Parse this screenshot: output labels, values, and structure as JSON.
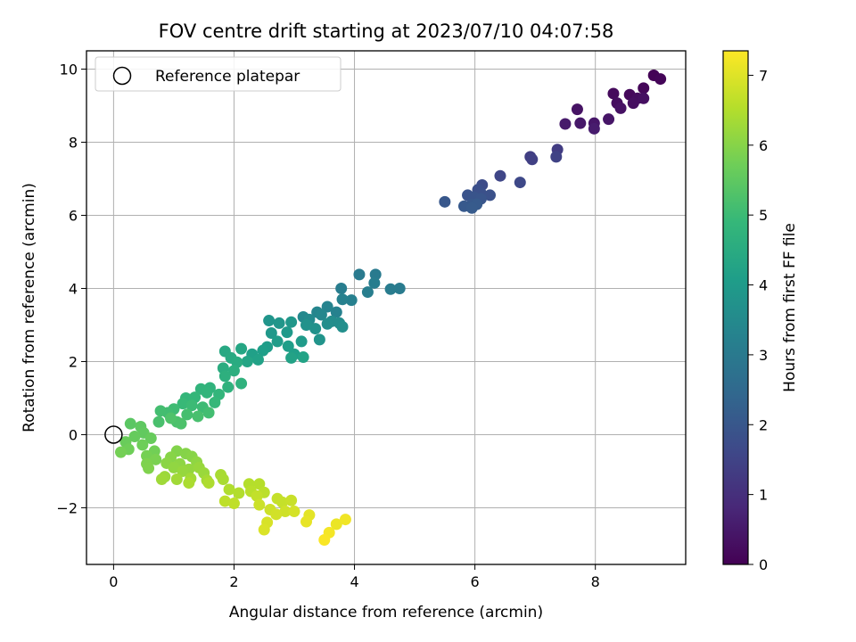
{
  "chart_data": {
    "type": "scatter",
    "title": "FOV centre drift starting at 2023/07/10 04:07:58",
    "xlabel": "Angular distance from reference (arcmin)",
    "ylabel": "Rotation from reference (arcmin)",
    "xlim": [
      -0.45,
      9.5
    ],
    "ylim": [
      -3.55,
      10.5
    ],
    "xticks": [
      0,
      2,
      4,
      6,
      8
    ],
    "xtick_labels": [
      "0",
      "2",
      "4",
      "6",
      "8"
    ],
    "yticks": [
      -2,
      0,
      2,
      4,
      6,
      8,
      10
    ],
    "ytick_labels": [
      "−2",
      "0",
      "2",
      "4",
      "6",
      "8",
      "10"
    ],
    "grid": true,
    "legend": {
      "placement": "top-left",
      "entries": [
        {
          "label": "Reference platepar",
          "marker": "open-circle"
        }
      ]
    },
    "reference_point": {
      "x": 0,
      "y": 0
    },
    "colorbar": {
      "label": "Hours from first FF file",
      "colormap": "viridis",
      "range": [
        0,
        7.35
      ],
      "ticks": [
        0,
        1,
        2,
        3,
        4,
        5,
        6,
        7
      ],
      "tick_labels": [
        "0",
        "1",
        "2",
        "3",
        "4",
        "5",
        "6",
        "7"
      ]
    },
    "colormap_stops": [
      "#440154",
      "#482878",
      "#3e4989",
      "#31688e",
      "#26828e",
      "#1f9e89",
      "#35b779",
      "#6ece58",
      "#b5de2b",
      "#fde725"
    ],
    "points": [
      {
        "x": 8.97,
        "y": 9.83,
        "t": 0.05
      },
      {
        "x": 9.08,
        "y": 9.73,
        "t": 0.08
      },
      {
        "x": 8.8,
        "y": 9.48,
        "t": 0.12
      },
      {
        "x": 8.57,
        "y": 9.3,
        "t": 0.15
      },
      {
        "x": 8.3,
        "y": 9.33,
        "t": 0.18
      },
      {
        "x": 8.7,
        "y": 9.2,
        "t": 0.22
      },
      {
        "x": 8.36,
        "y": 9.07,
        "t": 0.25
      },
      {
        "x": 8.63,
        "y": 9.07,
        "t": 0.28
      },
      {
        "x": 8.8,
        "y": 9.2,
        "t": 0.3
      },
      {
        "x": 8.42,
        "y": 8.93,
        "t": 0.33
      },
      {
        "x": 7.7,
        "y": 8.9,
        "t": 0.37
      },
      {
        "x": 8.22,
        "y": 8.63,
        "t": 0.42
      },
      {
        "x": 7.98,
        "y": 8.52,
        "t": 0.45
      },
      {
        "x": 7.75,
        "y": 8.52,
        "t": 0.48
      },
      {
        "x": 7.5,
        "y": 8.5,
        "t": 0.52
      },
      {
        "x": 7.98,
        "y": 8.37,
        "t": 0.56
      },
      {
        "x": 7.37,
        "y": 7.8,
        "t": 1.3
      },
      {
        "x": 6.92,
        "y": 7.6,
        "t": 1.35
      },
      {
        "x": 6.95,
        "y": 7.53,
        "t": 1.4
      },
      {
        "x": 7.35,
        "y": 7.6,
        "t": 1.45
      },
      {
        "x": 6.42,
        "y": 7.08,
        "t": 1.55
      },
      {
        "x": 6.75,
        "y": 6.9,
        "t": 1.6
      },
      {
        "x": 6.12,
        "y": 6.83,
        "t": 1.7
      },
      {
        "x": 6.05,
        "y": 6.7,
        "t": 1.8
      },
      {
        "x": 6.1,
        "y": 6.6,
        "t": 1.82
      },
      {
        "x": 6.25,
        "y": 6.55,
        "t": 1.85
      },
      {
        "x": 5.88,
        "y": 6.55,
        "t": 1.9
      },
      {
        "x": 5.98,
        "y": 6.5,
        "t": 1.92
      },
      {
        "x": 6.1,
        "y": 6.45,
        "t": 1.95
      },
      {
        "x": 5.5,
        "y": 6.37,
        "t": 2.0
      },
      {
        "x": 5.95,
        "y": 6.3,
        "t": 2.02
      },
      {
        "x": 5.82,
        "y": 6.25,
        "t": 2.05
      },
      {
        "x": 6.03,
        "y": 6.3,
        "t": 2.08
      },
      {
        "x": 5.95,
        "y": 6.2,
        "t": 2.1
      },
      {
        "x": 4.08,
        "y": 4.38,
        "t": 3.0
      },
      {
        "x": 4.35,
        "y": 4.38,
        "t": 3.02
      },
      {
        "x": 4.75,
        "y": 4.0,
        "t": 3.05
      },
      {
        "x": 4.6,
        "y": 3.98,
        "t": 3.08
      },
      {
        "x": 3.78,
        "y": 4.0,
        "t": 3.1
      },
      {
        "x": 4.33,
        "y": 4.15,
        "t": 3.12
      },
      {
        "x": 4.22,
        "y": 3.9,
        "t": 3.15
      },
      {
        "x": 3.95,
        "y": 3.68,
        "t": 3.2
      },
      {
        "x": 3.8,
        "y": 3.7,
        "t": 3.22
      },
      {
        "x": 3.7,
        "y": 3.35,
        "t": 3.25
      },
      {
        "x": 3.55,
        "y": 3.5,
        "t": 3.3
      },
      {
        "x": 3.38,
        "y": 3.35,
        "t": 3.35
      },
      {
        "x": 3.45,
        "y": 3.28,
        "t": 3.4
      },
      {
        "x": 3.15,
        "y": 3.22,
        "t": 3.45
      },
      {
        "x": 3.25,
        "y": 3.15,
        "t": 3.5
      },
      {
        "x": 3.62,
        "y": 3.1,
        "t": 3.55
      },
      {
        "x": 3.75,
        "y": 3.05,
        "t": 3.6
      },
      {
        "x": 3.55,
        "y": 3.03,
        "t": 3.62
      },
      {
        "x": 3.8,
        "y": 2.95,
        "t": 3.65
      },
      {
        "x": 3.35,
        "y": 2.9,
        "t": 3.7
      },
      {
        "x": 3.2,
        "y": 3.0,
        "t": 3.72
      },
      {
        "x": 3.42,
        "y": 2.6,
        "t": 3.78
      },
      {
        "x": 2.58,
        "y": 3.12,
        "t": 3.82
      },
      {
        "x": 2.75,
        "y": 3.05,
        "t": 3.85
      },
      {
        "x": 2.95,
        "y": 3.08,
        "t": 3.88
      },
      {
        "x": 2.62,
        "y": 2.78,
        "t": 3.9
      },
      {
        "x": 2.88,
        "y": 2.8,
        "t": 3.95
      },
      {
        "x": 3.12,
        "y": 2.55,
        "t": 4.0
      },
      {
        "x": 2.72,
        "y": 2.55,
        "t": 4.02
      },
      {
        "x": 2.55,
        "y": 2.4,
        "t": 4.05
      },
      {
        "x": 2.9,
        "y": 2.42,
        "t": 4.08
      },
      {
        "x": 2.48,
        "y": 2.3,
        "t": 4.1
      },
      {
        "x": 3.0,
        "y": 2.2,
        "t": 4.12
      },
      {
        "x": 2.3,
        "y": 2.2,
        "t": 4.15
      },
      {
        "x": 2.4,
        "y": 2.05,
        "t": 4.2
      },
      {
        "x": 2.95,
        "y": 2.1,
        "t": 4.22
      },
      {
        "x": 3.15,
        "y": 2.12,
        "t": 4.25
      },
      {
        "x": 2.22,
        "y": 2.0,
        "t": 4.3
      },
      {
        "x": 2.12,
        "y": 2.35,
        "t": 4.35
      },
      {
        "x": 1.85,
        "y": 2.28,
        "t": 4.4
      },
      {
        "x": 1.95,
        "y": 2.1,
        "t": 4.45
      },
      {
        "x": 2.05,
        "y": 1.98,
        "t": 4.5
      },
      {
        "x": 1.82,
        "y": 1.82,
        "t": 4.55
      },
      {
        "x": 2.0,
        "y": 1.75,
        "t": 4.6
      },
      {
        "x": 1.85,
        "y": 1.6,
        "t": 4.65
      },
      {
        "x": 2.12,
        "y": 1.4,
        "t": 4.7
      },
      {
        "x": 1.9,
        "y": 1.3,
        "t": 4.72
      },
      {
        "x": 1.6,
        "y": 1.28,
        "t": 4.75
      },
      {
        "x": 1.45,
        "y": 1.25,
        "t": 4.78
      },
      {
        "x": 1.55,
        "y": 1.15,
        "t": 4.8
      },
      {
        "x": 1.75,
        "y": 1.1,
        "t": 4.82
      },
      {
        "x": 1.2,
        "y": 1.0,
        "t": 4.85
      },
      {
        "x": 1.35,
        "y": 1.02,
        "t": 4.88
      },
      {
        "x": 1.68,
        "y": 0.88,
        "t": 4.9
      },
      {
        "x": 1.15,
        "y": 0.85,
        "t": 4.95
      },
      {
        "x": 1.3,
        "y": 0.8,
        "t": 5.0
      },
      {
        "x": 1.48,
        "y": 0.75,
        "t": 5.02
      },
      {
        "x": 1.0,
        "y": 0.7,
        "t": 5.05
      },
      {
        "x": 0.9,
        "y": 0.6,
        "t": 5.08
      },
      {
        "x": 1.58,
        "y": 0.6,
        "t": 5.1
      },
      {
        "x": 0.78,
        "y": 0.65,
        "t": 5.12
      },
      {
        "x": 1.22,
        "y": 0.55,
        "t": 5.15
      },
      {
        "x": 1.4,
        "y": 0.5,
        "t": 5.18
      },
      {
        "x": 0.75,
        "y": 0.35,
        "t": 5.2
      },
      {
        "x": 1.05,
        "y": 0.35,
        "t": 5.22
      },
      {
        "x": 1.12,
        "y": 0.3,
        "t": 5.25
      },
      {
        "x": 0.95,
        "y": 0.45,
        "t": 5.28
      },
      {
        "x": 0.28,
        "y": 0.3,
        "t": 5.45
      },
      {
        "x": 0.45,
        "y": 0.22,
        "t": 5.5
      },
      {
        "x": 0.5,
        "y": 0.05,
        "t": 5.55
      },
      {
        "x": 0.35,
        "y": -0.05,
        "t": 5.6
      },
      {
        "x": 0.62,
        "y": -0.1,
        "t": 5.62
      },
      {
        "x": 0.2,
        "y": -0.2,
        "t": 5.65
      },
      {
        "x": 0.48,
        "y": -0.28,
        "t": 5.7
      },
      {
        "x": 0.25,
        "y": -0.4,
        "t": 5.72
      },
      {
        "x": 0.68,
        "y": -0.45,
        "t": 5.75
      },
      {
        "x": 0.12,
        "y": -0.48,
        "t": 5.78
      },
      {
        "x": 0.55,
        "y": -0.58,
        "t": 5.8
      },
      {
        "x": 0.7,
        "y": -0.68,
        "t": 5.85
      },
      {
        "x": 0.55,
        "y": -0.8,
        "t": 5.9
      },
      {
        "x": 0.58,
        "y": -0.92,
        "t": 5.92
      },
      {
        "x": 1.05,
        "y": -0.45,
        "t": 5.95
      },
      {
        "x": 1.2,
        "y": -0.52,
        "t": 5.98
      },
      {
        "x": 0.95,
        "y": -0.62,
        "t": 6.0
      },
      {
        "x": 1.3,
        "y": -0.6,
        "t": 6.02
      },
      {
        "x": 0.88,
        "y": -0.78,
        "t": 6.05
      },
      {
        "x": 1.1,
        "y": -0.8,
        "t": 6.08
      },
      {
        "x": 1.38,
        "y": -0.75,
        "t": 6.1
      },
      {
        "x": 1.0,
        "y": -0.9,
        "t": 6.12
      },
      {
        "x": 1.25,
        "y": -0.95,
        "t": 6.15
      },
      {
        "x": 1.15,
        "y": -1.0,
        "t": 6.18
      },
      {
        "x": 1.42,
        "y": -0.9,
        "t": 6.2
      },
      {
        "x": 1.5,
        "y": -1.05,
        "t": 6.22
      },
      {
        "x": 0.85,
        "y": -1.15,
        "t": 6.25
      },
      {
        "x": 0.8,
        "y": -1.22,
        "t": 6.28
      },
      {
        "x": 1.05,
        "y": -1.22,
        "t": 6.3
      },
      {
        "x": 1.28,
        "y": -1.2,
        "t": 6.32
      },
      {
        "x": 1.55,
        "y": -1.25,
        "t": 6.35
      },
      {
        "x": 1.78,
        "y": -1.1,
        "t": 6.38
      },
      {
        "x": 1.82,
        "y": -1.22,
        "t": 6.4
      },
      {
        "x": 1.25,
        "y": -1.32,
        "t": 6.42
      },
      {
        "x": 1.58,
        "y": -1.32,
        "t": 6.45
      },
      {
        "x": 1.92,
        "y": -1.5,
        "t": 6.48
      },
      {
        "x": 2.08,
        "y": -1.6,
        "t": 6.5
      },
      {
        "x": 2.25,
        "y": -1.35,
        "t": 6.52
      },
      {
        "x": 2.42,
        "y": -1.35,
        "t": 6.55
      },
      {
        "x": 2.28,
        "y": -1.55,
        "t": 6.58
      },
      {
        "x": 2.5,
        "y": -1.58,
        "t": 6.6
      },
      {
        "x": 1.85,
        "y": -1.82,
        "t": 6.62
      },
      {
        "x": 2.0,
        "y": -1.88,
        "t": 6.65
      },
      {
        "x": 2.38,
        "y": -1.68,
        "t": 6.68
      },
      {
        "x": 2.72,
        "y": -1.75,
        "t": 6.7
      },
      {
        "x": 2.8,
        "y": -1.85,
        "t": 6.72
      },
      {
        "x": 2.95,
        "y": -1.8,
        "t": 6.75
      },
      {
        "x": 2.42,
        "y": -1.92,
        "t": 6.78
      },
      {
        "x": 2.6,
        "y": -2.05,
        "t": 6.8
      },
      {
        "x": 2.85,
        "y": -2.1,
        "t": 6.82
      },
      {
        "x": 2.7,
        "y": -2.18,
        "t": 6.85
      },
      {
        "x": 3.0,
        "y": -2.1,
        "t": 6.88
      },
      {
        "x": 2.55,
        "y": -2.4,
        "t": 6.92
      },
      {
        "x": 2.5,
        "y": -2.6,
        "t": 6.95
      },
      {
        "x": 3.25,
        "y": -2.2,
        "t": 7.05
      },
      {
        "x": 3.2,
        "y": -2.38,
        "t": 7.1
      },
      {
        "x": 3.7,
        "y": -2.45,
        "t": 7.15
      },
      {
        "x": 3.85,
        "y": -2.32,
        "t": 7.2
      },
      {
        "x": 3.58,
        "y": -2.68,
        "t": 7.25
      },
      {
        "x": 3.5,
        "y": -2.88,
        "t": 7.3
      }
    ]
  }
}
